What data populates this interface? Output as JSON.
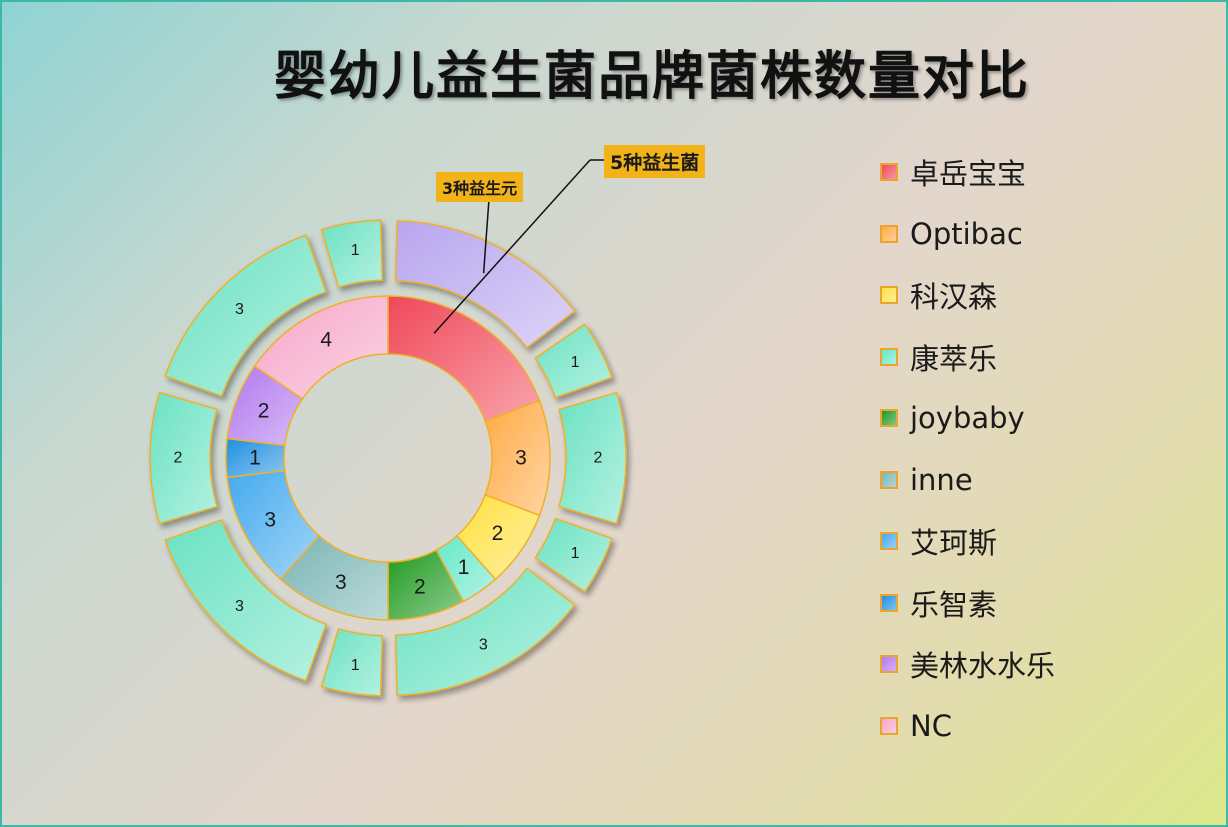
{
  "chart_data": {
    "type": "pie",
    "title": "婴幼儿益生菌品牌菌株数量对比",
    "inner_ring": {
      "series": [
        {
          "name": "卓岳宝宝",
          "value": 5,
          "color": "#f04858"
        },
        {
          "name": "Optibac",
          "value": 3,
          "color": "#ffaa44"
        },
        {
          "name": "科汉森",
          "value": 2,
          "color": "#ffe040"
        },
        {
          "name": "康萃乐",
          "value": 1,
          "color": "#66e8c8"
        },
        {
          "name": "joybaby",
          "value": 2,
          "color": "#1f9a1f"
        },
        {
          "name": "inne",
          "value": 3,
          "color": "#7ab4b4"
        },
        {
          "name": "艾珂斯",
          "value": 3,
          "color": "#44aaee"
        },
        {
          "name": "乐智素",
          "value": 1,
          "color": "#1d8fe0"
        },
        {
          "name": "美林水水乐",
          "value": 2,
          "color": "#b077ee"
        },
        {
          "name": "NC",
          "value": 4,
          "color": "#f6a6c8"
        }
      ],
      "labels": [
        "",
        "3",
        "2",
        "1",
        "2",
        "3",
        "3",
        "1",
        "2",
        "4"
      ]
    },
    "outer_ring": {
      "values": [
        3,
        1,
        2,
        1,
        3,
        1,
        3,
        2,
        3,
        1
      ],
      "labels": [
        "",
        "1",
        "2",
        "1",
        "3",
        "1",
        "3",
        "2",
        "3",
        "1"
      ],
      "highlight_index": 0,
      "highlight_color": "#b8a6ee",
      "default_color": "#6ae2c2"
    },
    "annotations": [
      {
        "id": "outer",
        "text": "3种益生元"
      },
      {
        "id": "inner",
        "text": "5种益生菌"
      }
    ],
    "legend_position": "right"
  }
}
